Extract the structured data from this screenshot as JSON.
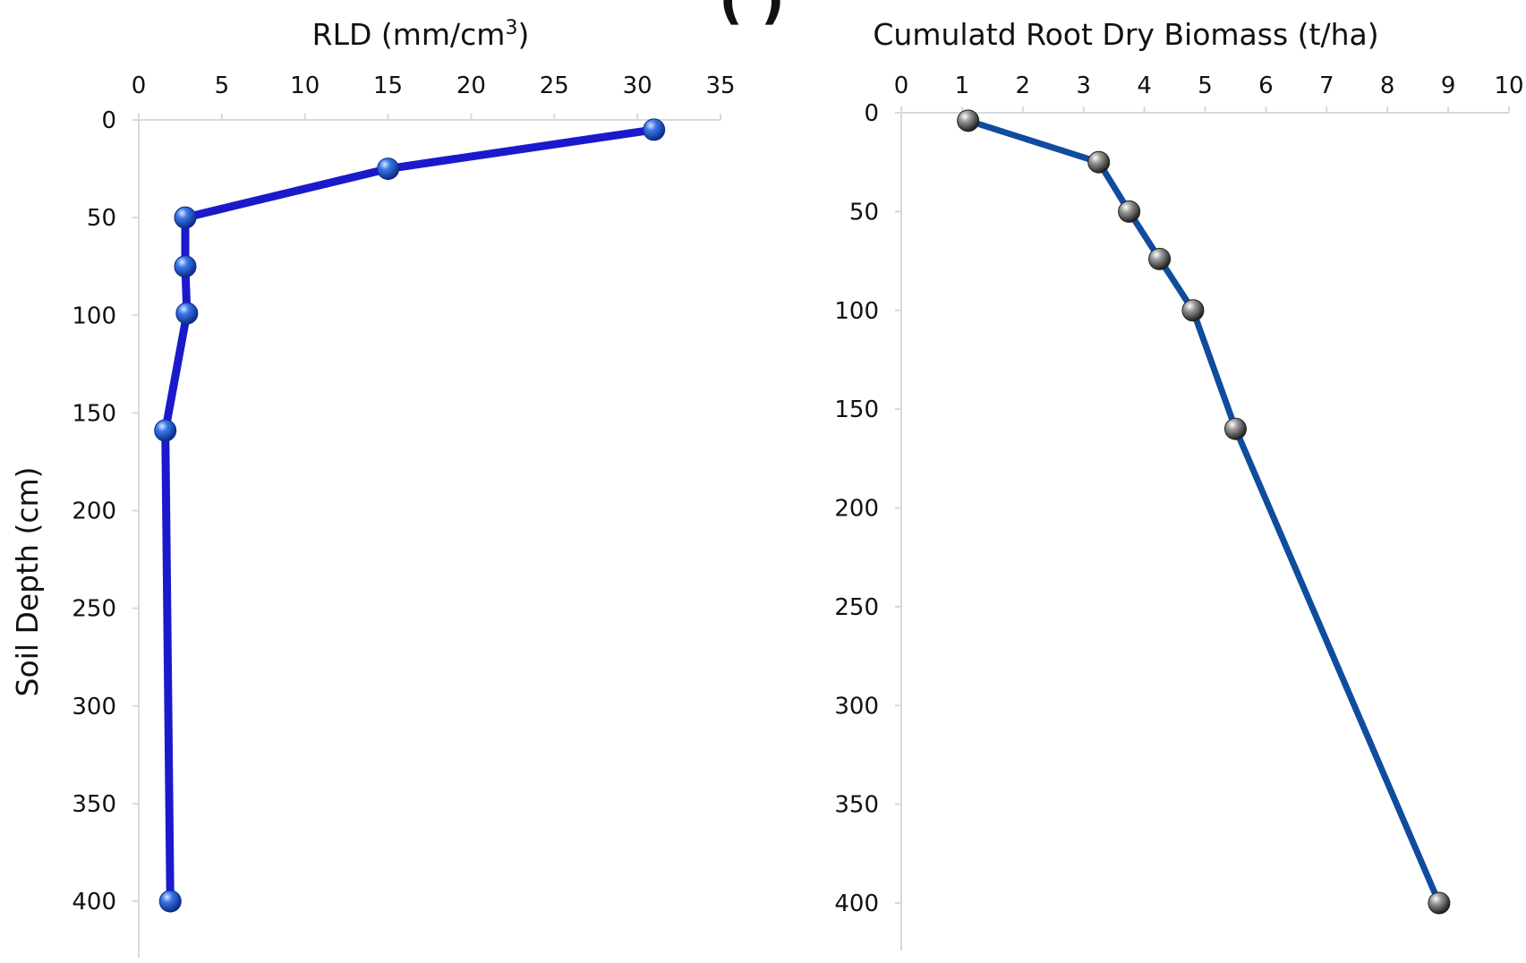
{
  "figure": {
    "title_fragment": "(                        )"
  },
  "chart_data": [
    {
      "type": "line",
      "title": "",
      "xlabel": "RLD (mm/cm",
      "xlabel_superscript": "3",
      "xlabel_suffix": ")",
      "ylabel": "Soil Depth (cm)",
      "xlim": [
        0,
        35
      ],
      "ylim": [
        0,
        420
      ],
      "x_axis_position": "top",
      "y_inverted": true,
      "grid": false,
      "x_ticks": [
        "0",
        "5",
        "10",
        "15",
        "20",
        "25",
        "30",
        "35"
      ],
      "y_ticks": [
        "0",
        "50",
        "100",
        "150",
        "200",
        "250",
        "300",
        "350",
        "400"
      ],
      "line_color": "#1a1acc",
      "marker_color": "#2f6fe0",
      "series": [
        {
          "x": [
            31,
            15,
            2.8,
            2.8,
            2.9,
            1.6,
            1.9
          ],
          "y": [
            5,
            25,
            50,
            75,
            99,
            159,
            400
          ]
        }
      ]
    },
    {
      "type": "line",
      "title": "",
      "xlabel": "Cumulatd Root Dry Biomass (t/ha)",
      "ylabel": "",
      "xlim": [
        0,
        10
      ],
      "ylim": [
        0,
        420
      ],
      "x_axis_position": "top",
      "y_inverted": true,
      "grid": false,
      "x_ticks": [
        "0",
        "1",
        "2",
        "3",
        "4",
        "5",
        "6",
        "7",
        "8",
        "9",
        "10"
      ],
      "y_ticks": [
        "0",
        "50",
        "100",
        "150",
        "200",
        "250",
        "300",
        "350",
        "400"
      ],
      "line_color": "#0f4c9e",
      "marker_color": "#9a9a9a",
      "series": [
        {
          "x": [
            1.1,
            3.25,
            3.75,
            4.25,
            4.8,
            5.5,
            8.85
          ],
          "y": [
            4,
            25,
            50,
            74,
            100,
            160,
            400
          ]
        }
      ]
    }
  ]
}
